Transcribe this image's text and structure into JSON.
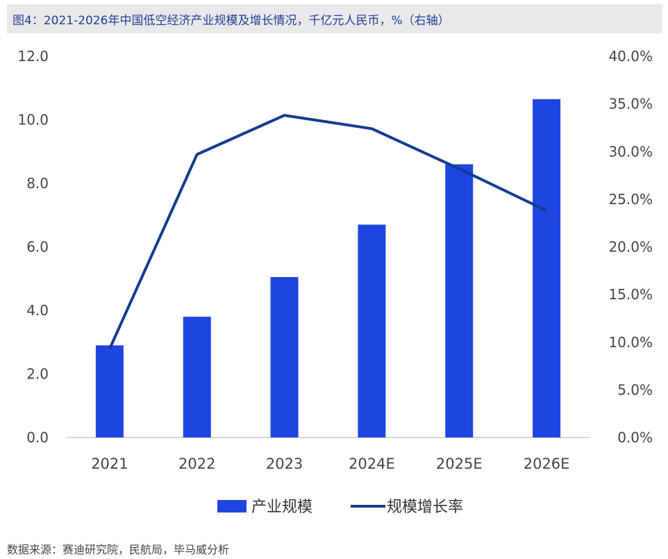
{
  "title": "图4：2021-2026年中国低空经济产业规模及增长情况，千亿元人民币，%（右轴）",
  "source": "数据来源：赛迪研究院，民航局，毕马威分析",
  "colors": {
    "bar": "#1f45e0",
    "line": "#123c8e",
    "axis_text": "#444444",
    "axis_line": "#cccccc"
  },
  "chart_data": {
    "type": "bar+line",
    "categories": [
      "2021",
      "2022",
      "2023",
      "2024E",
      "2025E",
      "2026E"
    ],
    "series": [
      {
        "name": "产业规模",
        "type": "bar",
        "axis": "left",
        "values": [
          2.9,
          3.8,
          5.05,
          6.7,
          8.6,
          10.65
        ]
      },
      {
        "name": "规模增长率",
        "type": "line",
        "axis": "right",
        "values": [
          9.3,
          29.7,
          33.8,
          32.4,
          28.2,
          23.8
        ]
      }
    ],
    "y_left": {
      "range": [
        0,
        12
      ],
      "ticks": [
        "0.0",
        "2.0",
        "4.0",
        "6.0",
        "8.0",
        "10.0",
        "12.0"
      ]
    },
    "y_right": {
      "range": [
        0,
        40
      ],
      "ticks": [
        "0.0%",
        "5.0%",
        "10.0%",
        "15.0%",
        "20.0%",
        "25.0%",
        "30.0%",
        "35.0%",
        "40.0%"
      ]
    },
    "legend": {
      "position": "bottom-center"
    }
  }
}
